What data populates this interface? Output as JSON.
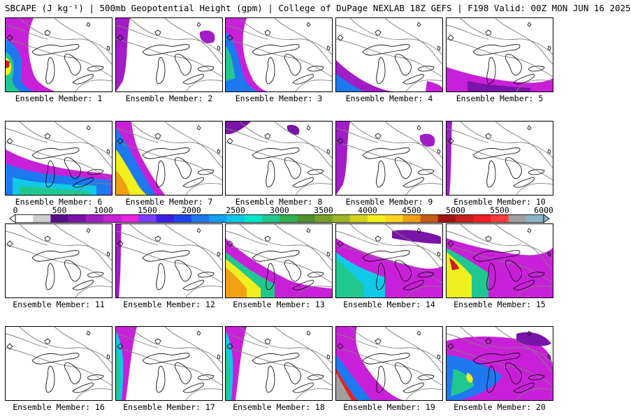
{
  "header": {
    "title": "SBCAPE (J kg⁻¹) | 500mb Geopotential Height (gpm) | College of DuPage NEXLAB 18Z GEFS | F198 Valid: 00Z MON JUN 16 2025"
  },
  "colorbar": {
    "labels": [
      "0",
      "500",
      "1000",
      "1500",
      "2000",
      "2500",
      "3000",
      "3500",
      "4000",
      "4500",
      "5000",
      "5500",
      "6000"
    ],
    "min": 0,
    "max": 6000,
    "step": 200,
    "colors": [
      "#ffffff",
      "#cfcfcf",
      "#5a0f8e",
      "#7a14a8",
      "#a21cc8",
      "#c820d8",
      "#e824e0",
      "#7a3cff",
      "#3c1ee8",
      "#1e46f0",
      "#1e78f0",
      "#14a0f0",
      "#10c8e8",
      "#00e6c8",
      "#20c890",
      "#30b050",
      "#509030",
      "#78a028",
      "#a0b428",
      "#d2d21e",
      "#f0f01e",
      "#ffd21e",
      "#f0a014",
      "#c85a14",
      "#a01414",
      "#c81e1e",
      "#f01e1e",
      "#ff3c3c",
      "#a0a0a0",
      "#8ab4c8"
    ]
  },
  "map_style": {
    "background": "#ffffff",
    "coast_color": "#000000",
    "contour_color": "#808080"
  },
  "panels": [
    {
      "label": "Ensemble Member: 1",
      "shading": "west-strong"
    },
    {
      "label": "Ensemble Member: 2",
      "shading": "west-weak-purple"
    },
    {
      "label": "Ensemble Member: 3",
      "shading": "west-medium"
    },
    {
      "label": "Ensemble Member: 4",
      "shading": "southwest-weak"
    },
    {
      "label": "Ensemble Member: 5",
      "shading": "south-purple"
    },
    {
      "label": "Ensemble Member: 6",
      "shading": "south-strong-cyan"
    },
    {
      "label": "Ensemble Member: 7",
      "shading": "west-yellow"
    },
    {
      "label": "Ensemble Member: 8",
      "shading": "north-weak"
    },
    {
      "label": "Ensemble Member: 9",
      "shading": "west-weak-purple"
    },
    {
      "label": "Ensemble Member: 10",
      "shading": "edge-thin"
    },
    {
      "label": "Ensemble Member: 11",
      "shading": "none"
    },
    {
      "label": "Ensemble Member: 12",
      "shading": "edge-thin"
    },
    {
      "label": "Ensemble Member: 13",
      "shading": "southwest-yellow"
    },
    {
      "label": "Ensemble Member: 14",
      "shading": "southwest-green"
    },
    {
      "label": "Ensemble Member: 15",
      "shading": "southwest-red"
    },
    {
      "label": "Ensemble Member: 16",
      "shading": "none"
    },
    {
      "label": "Ensemble Member: 17",
      "shading": "west-band-cyan"
    },
    {
      "label": "Ensemble Member: 18",
      "shading": "west-band-cyan"
    },
    {
      "label": "Ensemble Member: 19",
      "shading": "southwest-grey"
    },
    {
      "label": "Ensemble Member: 20",
      "shading": "widespread-purple"
    }
  ]
}
